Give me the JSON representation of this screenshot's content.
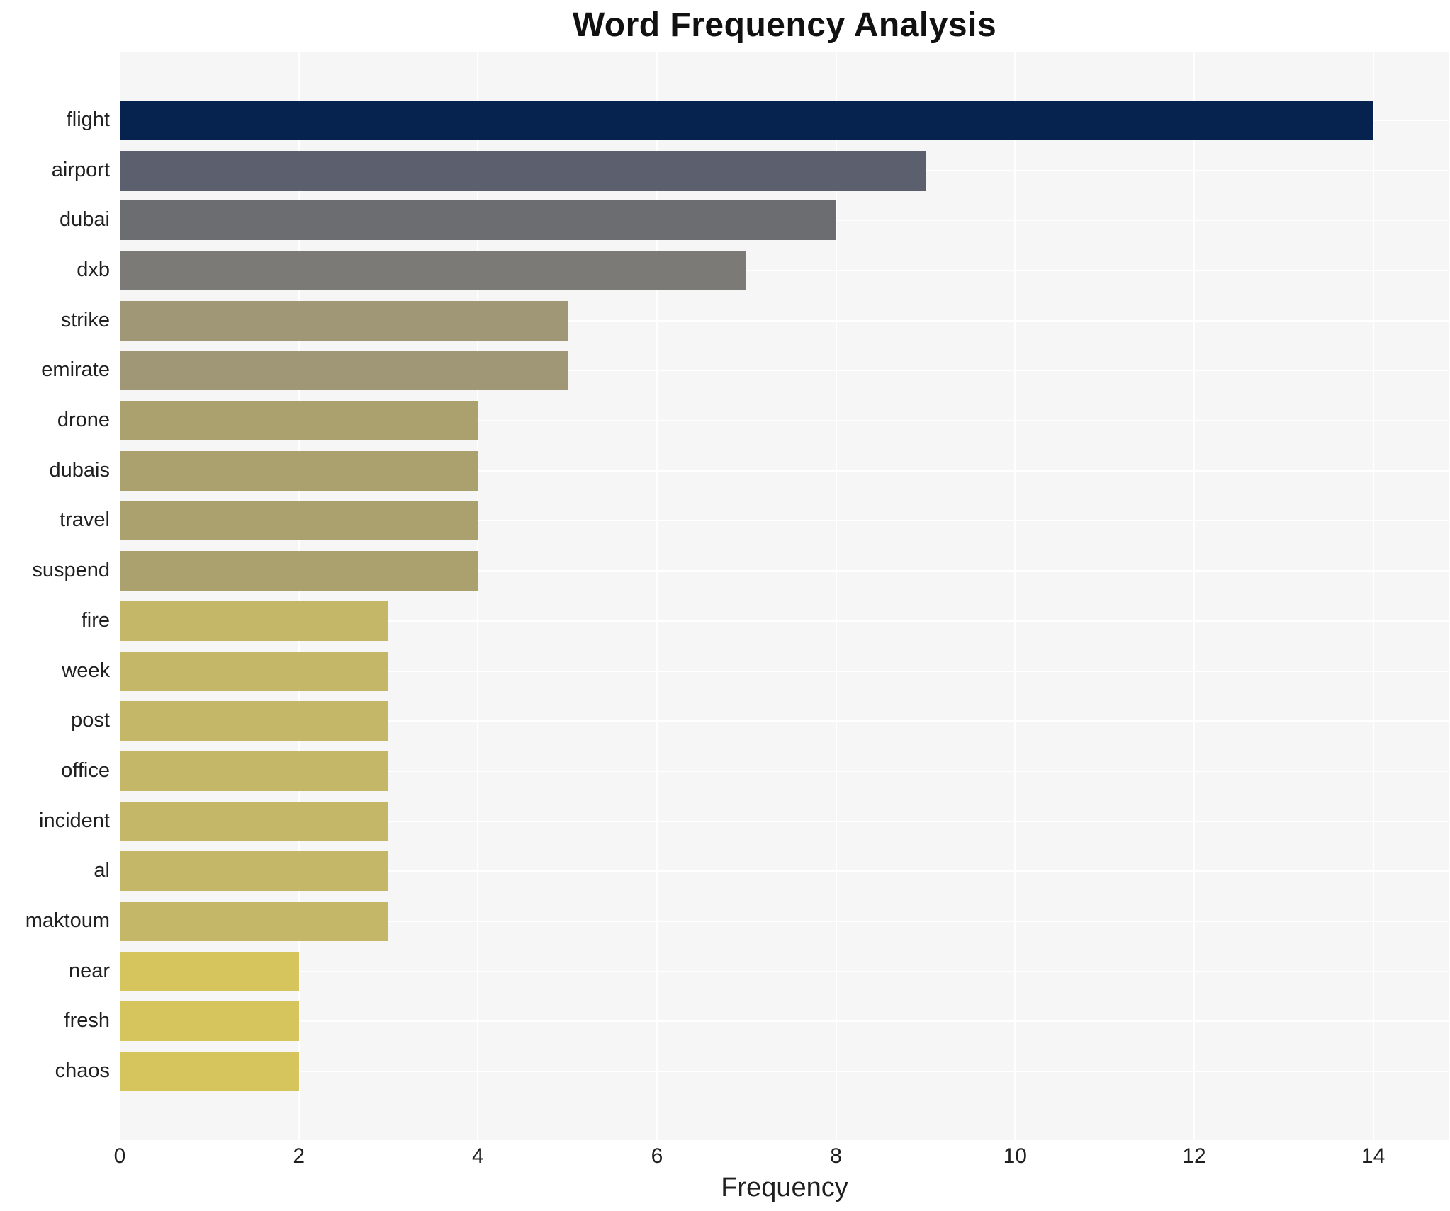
{
  "chart_data": {
    "type": "bar",
    "orientation": "horizontal",
    "title": "Word Frequency Analysis",
    "xlabel": "Frequency",
    "ylabel": "",
    "categories": [
      "flight",
      "airport",
      "dubai",
      "dxb",
      "strike",
      "emirate",
      "drone",
      "dubais",
      "travel",
      "suspend",
      "fire",
      "week",
      "post",
      "office",
      "incident",
      "al",
      "maktoum",
      "near",
      "fresh",
      "chaos"
    ],
    "values": [
      14,
      9,
      8,
      7,
      5,
      5,
      4,
      4,
      4,
      4,
      3,
      3,
      3,
      3,
      3,
      3,
      3,
      2,
      2,
      2
    ],
    "bar_colors": [
      "#05234e",
      "#5b5f6e",
      "#6c6d71",
      "#7b7a76",
      "#9f9775",
      "#9f9775",
      "#aba16f",
      "#aba16f",
      "#aba16f",
      "#aba16f",
      "#c5b768",
      "#c5b768",
      "#c5b768",
      "#c5b768",
      "#c5b768",
      "#c5b768",
      "#c5b768",
      "#d6c45c",
      "#d6c45c",
      "#d6c45c"
    ],
    "x_ticks": [
      0,
      2,
      4,
      6,
      8,
      10,
      12,
      14
    ],
    "xlim": [
      0,
      14.85
    ],
    "grid": true,
    "legend": "none",
    "plot_background": "#f6f6f7",
    "grid_color": "#ffffff",
    "title_color": "#111111",
    "label_color": "#1f1f1f"
  }
}
